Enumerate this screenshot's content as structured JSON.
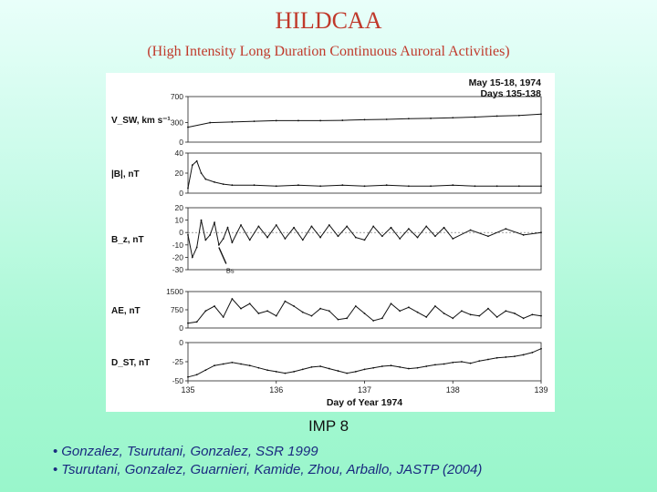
{
  "slide": {
    "title": "HILDCAA",
    "subtitle": "(High Intensity Long Duration Continuous Auroral Activities)",
    "instrument": "IMP 8",
    "references": [
      "Gonzalez, Tsurutani, Gonzalez, SSR 1999",
      "Tsurutani, Gonzalez, Guarnieri, Kamide, Zhou, Arballo, JASTP (2004)"
    ],
    "bullet_glyph": "•"
  },
  "chart_data": {
    "type": "line",
    "header": [
      "May 15-18, 1974",
      "Days 135-138"
    ],
    "xlabel": "Day of Year 1974",
    "xlim": [
      135,
      139
    ],
    "xticks": [
      "135",
      "136",
      "137",
      "138",
      "139"
    ],
    "annotation": "Bs",
    "panels": [
      {
        "ylabel": "V_SW, km s⁻¹",
        "ylim": [
          0,
          700
        ],
        "yticks": [
          "700",
          "300",
          "0"
        ],
        "x": [
          135.0,
          135.25,
          135.5,
          135.75,
          136.0,
          136.25,
          136.5,
          136.75,
          137.0,
          137.25,
          137.5,
          137.75,
          138.0,
          138.25,
          138.5,
          138.75,
          139.0
        ],
        "values": [
          230,
          300,
          310,
          320,
          330,
          330,
          330,
          335,
          345,
          350,
          360,
          365,
          375,
          385,
          400,
          410,
          430
        ]
      },
      {
        "ylabel": "|B|, nT",
        "ylim": [
          0,
          40
        ],
        "yticks": [
          "40",
          "20",
          "0"
        ],
        "x": [
          135.0,
          135.05,
          135.1,
          135.15,
          135.2,
          135.3,
          135.4,
          135.5,
          135.75,
          136.0,
          136.25,
          136.5,
          136.75,
          137.0,
          137.25,
          137.5,
          137.75,
          138.0,
          138.25,
          138.5,
          138.75,
          139.0
        ],
        "values": [
          5,
          28,
          32,
          20,
          14,
          11,
          9,
          8,
          8,
          7,
          8,
          7,
          8,
          7,
          8,
          7,
          7,
          8,
          7,
          7,
          7,
          7
        ]
      },
      {
        "ylabel": "B_z, nT",
        "ylim": [
          -30,
          20
        ],
        "yticks": [
          "20",
          "10",
          "0",
          "-10",
          "-20",
          "-30"
        ],
        "x": [
          135.0,
          135.05,
          135.1,
          135.15,
          135.2,
          135.25,
          135.3,
          135.35,
          135.4,
          135.45,
          135.5,
          135.6,
          135.7,
          135.8,
          135.9,
          136.0,
          136.1,
          136.2,
          136.3,
          136.4,
          136.5,
          136.6,
          136.7,
          136.8,
          136.9,
          137.0,
          137.1,
          137.2,
          137.3,
          137.4,
          137.5,
          137.6,
          137.7,
          137.8,
          137.9,
          138.0,
          138.2,
          138.4,
          138.6,
          138.8,
          139.0
        ],
        "values": [
          -2,
          -20,
          -12,
          10,
          -6,
          -2,
          8,
          -10,
          -5,
          4,
          -8,
          6,
          -6,
          5,
          -4,
          6,
          -5,
          4,
          -6,
          5,
          -4,
          6,
          -3,
          5,
          -4,
          -6,
          5,
          -3,
          4,
          -5,
          3,
          -4,
          5,
          -3,
          4,
          -5,
          2,
          -3,
          3,
          -2,
          0
        ]
      },
      {
        "ylabel": "AE, nT",
        "ylim": [
          0,
          1500
        ],
        "yticks": [
          "1500",
          "750",
          "0"
        ],
        "x": [
          135.0,
          135.1,
          135.2,
          135.3,
          135.4,
          135.5,
          135.6,
          135.7,
          135.8,
          135.9,
          136.0,
          136.1,
          136.2,
          136.3,
          136.4,
          136.5,
          136.6,
          136.7,
          136.8,
          136.9,
          137.0,
          137.1,
          137.2,
          137.3,
          137.4,
          137.5,
          137.6,
          137.7,
          137.8,
          137.9,
          138.0,
          138.1,
          138.2,
          138.3,
          138.4,
          138.5,
          138.6,
          138.7,
          138.8,
          138.9,
          139.0
        ],
        "values": [
          200,
          250,
          700,
          900,
          450,
          1200,
          800,
          1000,
          600,
          700,
          500,
          1100,
          900,
          650,
          500,
          800,
          700,
          350,
          400,
          900,
          600,
          300,
          400,
          1000,
          700,
          850,
          650,
          450,
          900,
          600,
          400,
          700,
          550,
          500,
          800,
          450,
          700,
          600,
          400,
          550,
          500
        ]
      },
      {
        "ylabel": "D_ST, nT",
        "ylim": [
          -50,
          0
        ],
        "yticks": [
          "0",
          "-25",
          "-50"
        ],
        "x": [
          135.0,
          135.1,
          135.2,
          135.3,
          135.4,
          135.5,
          135.6,
          135.7,
          135.8,
          135.9,
          136.0,
          136.1,
          136.2,
          136.3,
          136.4,
          136.5,
          136.6,
          136.7,
          136.8,
          136.9,
          137.0,
          137.1,
          137.2,
          137.3,
          137.4,
          137.5,
          137.6,
          137.7,
          137.8,
          137.9,
          138.0,
          138.1,
          138.2,
          138.3,
          138.4,
          138.5,
          138.6,
          138.7,
          138.8,
          138.9,
          139.0
        ],
        "values": [
          -45,
          -42,
          -36,
          -30,
          -28,
          -26,
          -28,
          -30,
          -33,
          -36,
          -38,
          -40,
          -38,
          -35,
          -32,
          -31,
          -34,
          -37,
          -40,
          -38,
          -35,
          -33,
          -31,
          -30,
          -32,
          -34,
          -33,
          -31,
          -29,
          -28,
          -26,
          -25,
          -27,
          -24,
          -22,
          -20,
          -19,
          -18,
          -16,
          -13,
          -8
        ]
      }
    ]
  }
}
